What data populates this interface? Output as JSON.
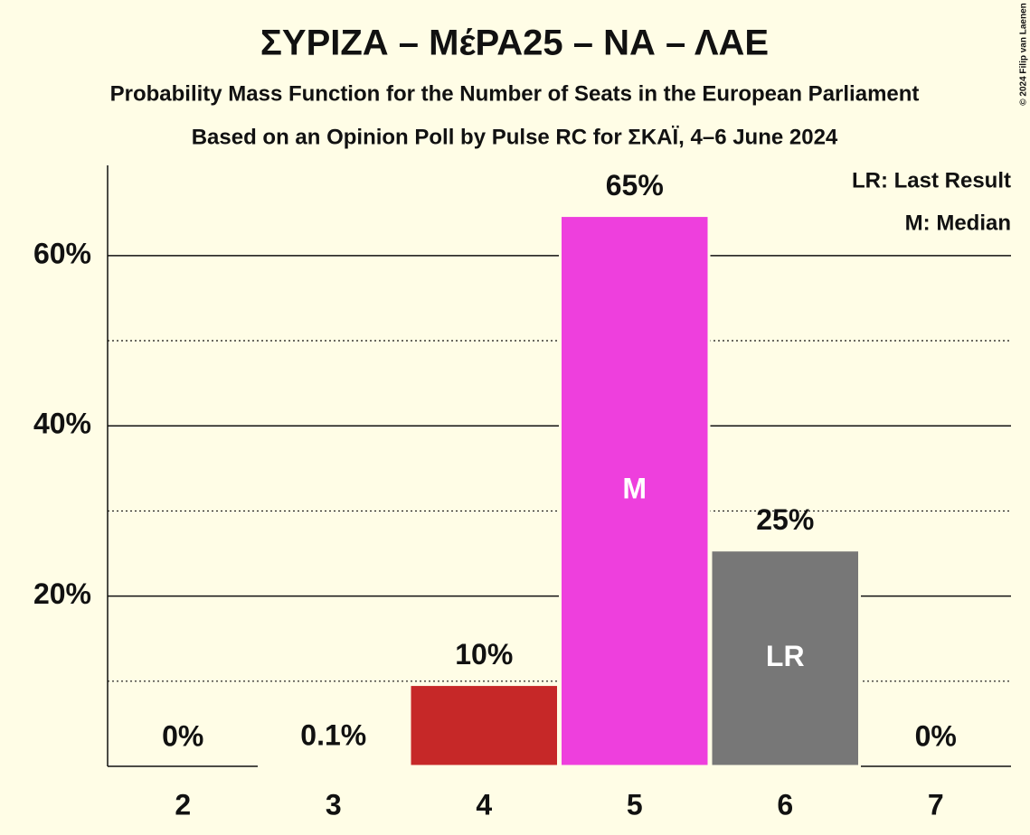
{
  "chart_data": {
    "type": "bar",
    "title": "ΣΥΡΙΖΑ – ΜέΡΑ25 – ΝΑ – ΛΑΕ",
    "subtitle": "Probability Mass Function for the Number of Seats in the European Parliament",
    "subtitle2": "Based on an Opinion Poll by Pulse RC for ΣΚΑΪ, 4–6 June 2024",
    "copyright": "© 2024 Filip van Laenen",
    "legend": [
      "LR: Last Result",
      "M: Median"
    ],
    "categories": [
      "2",
      "3",
      "4",
      "5",
      "6",
      "7"
    ],
    "values": [
      0,
      0.1,
      9.6,
      64.7,
      25.4,
      0
    ],
    "value_labels": [
      "0%",
      "0.1%",
      "10%",
      "65%",
      "25%",
      "0%"
    ],
    "bar_annotations": [
      null,
      null,
      null,
      "M",
      "LR",
      null
    ],
    "colors": [
      "#c62828",
      "#c62828",
      "#c62828",
      "#ee3fdd",
      "#777777",
      "#777777"
    ],
    "ylim": [
      0,
      70.6
    ],
    "yticks": [
      {
        "value": 20,
        "label": "20%"
      },
      {
        "value": 40,
        "label": "40%"
      },
      {
        "value": 60,
        "label": "60%"
      }
    ],
    "minor_yticks": [
      10,
      30,
      50
    ],
    "grid": true
  }
}
